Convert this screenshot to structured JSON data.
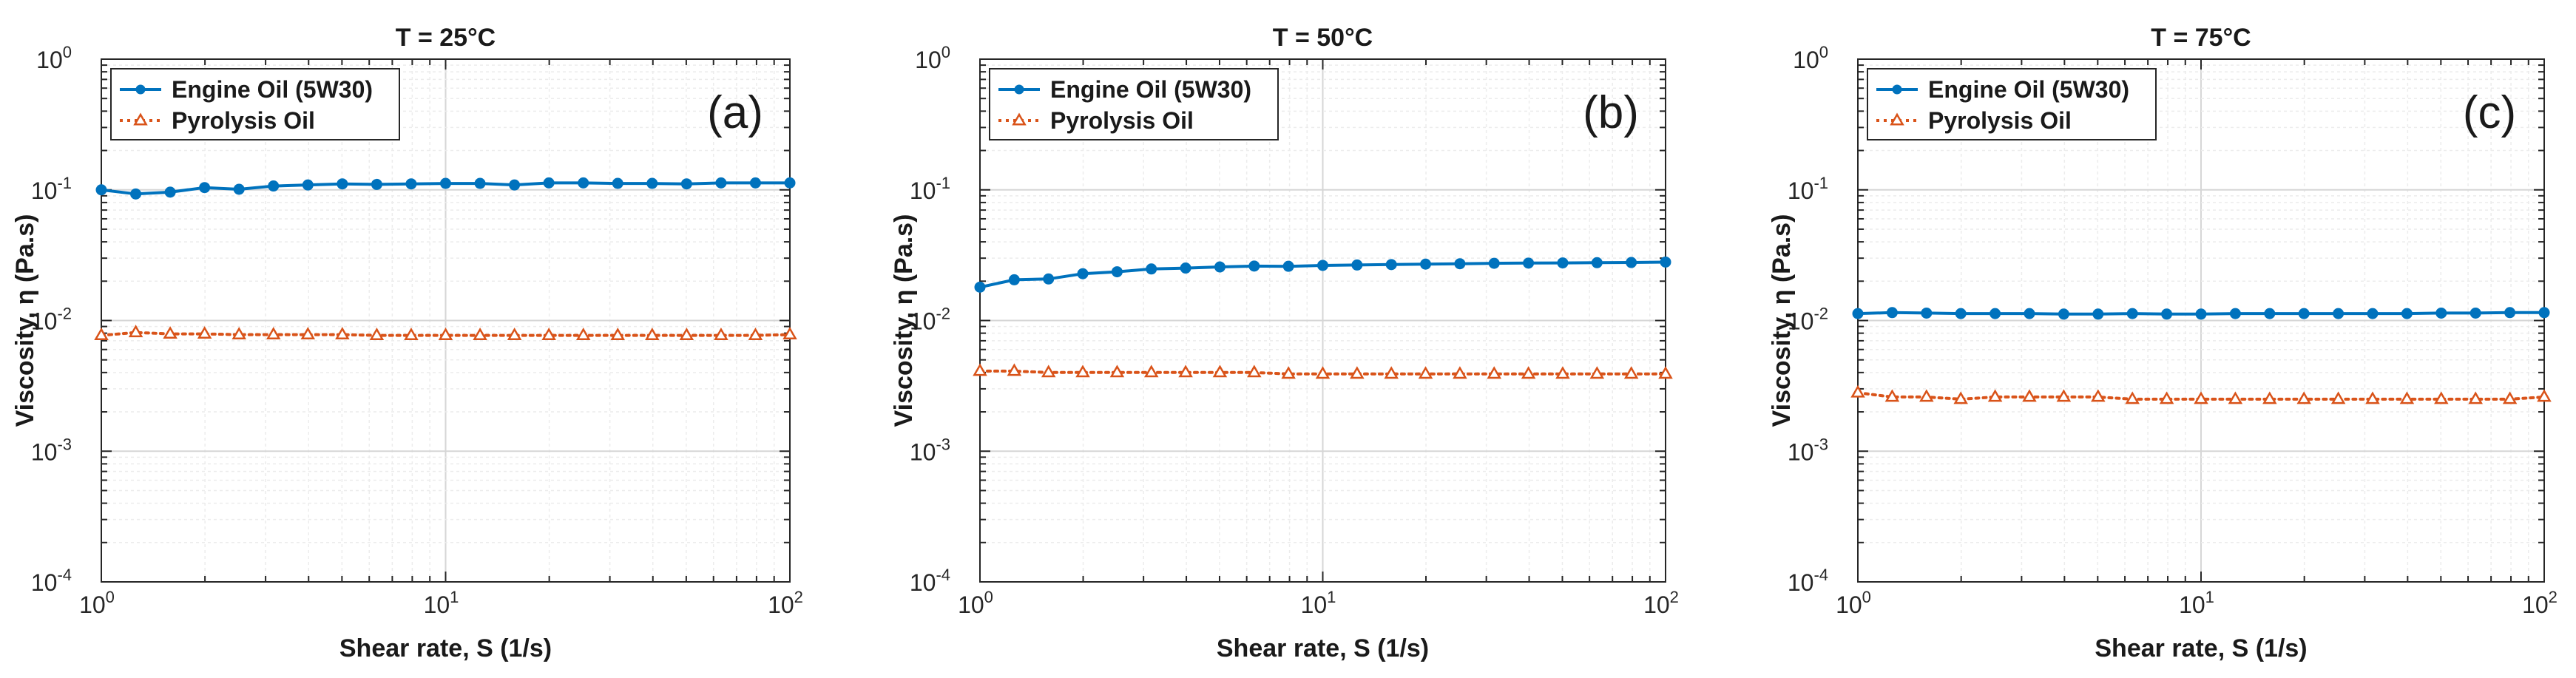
{
  "chart_data": [
    {
      "type": "line",
      "title": "T = 25°C",
      "panel_label": "(a)",
      "xlabel": "Shear rate, S (1/s)",
      "ylabel": "Viscosity, η (Pa.s)",
      "xscale": "log",
      "yscale": "log",
      "xlim": [
        1,
        100
      ],
      "ylim": [
        0.0001,
        1
      ],
      "grid": true,
      "legend_position": "top-left",
      "x_tick_labels": [
        {
          "base": "10",
          "exp": "0"
        },
        {
          "base": "10",
          "exp": "1"
        },
        {
          "base": "10",
          "exp": "2"
        }
      ],
      "y_tick_labels": [
        {
          "base": "10",
          "exp": "-4"
        },
        {
          "base": "10",
          "exp": "-3"
        },
        {
          "base": "10",
          "exp": "-2"
        },
        {
          "base": "10",
          "exp": "-1"
        },
        {
          "base": "10",
          "exp": "0"
        }
      ],
      "x": [
        1.0,
        1.259,
        1.585,
        1.995,
        2.512,
        3.162,
        3.981,
        5.012,
        6.31,
        7.943,
        10.0,
        12.59,
        15.85,
        19.95,
        25.12,
        31.62,
        39.81,
        50.12,
        63.1,
        79.43,
        100.0
      ],
      "series": [
        {
          "name": "Engine Oil (5W30)",
          "color": "#0072bd",
          "marker": "circle",
          "style": "solid",
          "values": [
            0.1,
            0.093,
            0.096,
            0.104,
            0.101,
            0.107,
            0.109,
            0.111,
            0.11,
            0.111,
            0.112,
            0.112,
            0.109,
            0.113,
            0.113,
            0.112,
            0.112,
            0.111,
            0.113,
            0.113,
            0.113
          ]
        },
        {
          "name": "Pyrolysis Oil",
          "color": "#d95319",
          "marker": "triangle",
          "style": "dotted",
          "values": [
            0.0077,
            0.0081,
            0.0079,
            0.0079,
            0.0078,
            0.0078,
            0.0078,
            0.0078,
            0.0077,
            0.0077,
            0.0077,
            0.0077,
            0.0077,
            0.0077,
            0.0077,
            0.0077,
            0.0077,
            0.0077,
            0.0077,
            0.0077,
            0.0078
          ]
        }
      ]
    },
    {
      "type": "line",
      "title": "T = 50°C",
      "panel_label": "(b)",
      "xlabel": "Shear rate, S (1/s)",
      "ylabel": "Viscosity, η (Pa.s)",
      "xscale": "log",
      "yscale": "log",
      "xlim": [
        1,
        100
      ],
      "ylim": [
        0.0001,
        1
      ],
      "grid": true,
      "legend_position": "top-left",
      "x_tick_labels": [
        {
          "base": "10",
          "exp": "0"
        },
        {
          "base": "10",
          "exp": "1"
        },
        {
          "base": "10",
          "exp": "2"
        }
      ],
      "y_tick_labels": [
        {
          "base": "10",
          "exp": "-4"
        },
        {
          "base": "10",
          "exp": "-3"
        },
        {
          "base": "10",
          "exp": "-2"
        },
        {
          "base": "10",
          "exp": "-1"
        },
        {
          "base": "10",
          "exp": "0"
        }
      ],
      "x": [
        1.0,
        1.259,
        1.585,
        1.995,
        2.512,
        3.162,
        3.981,
        5.012,
        6.31,
        7.943,
        10.0,
        12.59,
        15.85,
        19.95,
        25.12,
        31.62,
        39.81,
        50.12,
        63.1,
        79.43,
        100.0
      ],
      "series": [
        {
          "name": "Engine Oil (5W30)",
          "color": "#0072bd",
          "marker": "circle",
          "style": "solid",
          "values": [
            0.018,
            0.0205,
            0.0208,
            0.0228,
            0.0236,
            0.0248,
            0.0252,
            0.0257,
            0.0261,
            0.026,
            0.0264,
            0.0266,
            0.0268,
            0.027,
            0.0272,
            0.0274,
            0.0275,
            0.0276,
            0.0277,
            0.0278,
            0.028
          ]
        },
        {
          "name": "Pyrolysis Oil",
          "color": "#d95319",
          "marker": "triangle",
          "style": "dotted",
          "values": [
            0.0041,
            0.0041,
            0.004,
            0.004,
            0.004,
            0.004,
            0.004,
            0.004,
            0.004,
            0.0039,
            0.0039,
            0.0039,
            0.0039,
            0.0039,
            0.0039,
            0.0039,
            0.0039,
            0.0039,
            0.0039,
            0.0039,
            0.0039
          ]
        }
      ]
    },
    {
      "type": "line",
      "title": "T = 75°C",
      "panel_label": "(c)",
      "xlabel": "Shear rate, S (1/s)",
      "ylabel": "Viscosity, η (Pa.s)",
      "xscale": "log",
      "yscale": "log",
      "xlim": [
        1,
        100
      ],
      "ylim": [
        0.0001,
        1
      ],
      "grid": true,
      "legend_position": "top-left",
      "x_tick_labels": [
        {
          "base": "10",
          "exp": "0"
        },
        {
          "base": "10",
          "exp": "1"
        },
        {
          "base": "10",
          "exp": "2"
        }
      ],
      "y_tick_labels": [
        {
          "base": "10",
          "exp": "-4"
        },
        {
          "base": "10",
          "exp": "-3"
        },
        {
          "base": "10",
          "exp": "-2"
        },
        {
          "base": "10",
          "exp": "-1"
        },
        {
          "base": "10",
          "exp": "0"
        }
      ],
      "x": [
        1.0,
        1.259,
        1.585,
        1.995,
        2.512,
        3.162,
        3.981,
        5.012,
        6.31,
        7.943,
        10.0,
        12.59,
        15.85,
        19.95,
        25.12,
        31.62,
        39.81,
        50.12,
        63.1,
        79.43,
        100.0
      ],
      "series": [
        {
          "name": "Engine Oil (5W30)",
          "color": "#0072bd",
          "marker": "circle",
          "style": "solid",
          "values": [
            0.0113,
            0.0115,
            0.0114,
            0.0113,
            0.0113,
            0.0113,
            0.0112,
            0.0112,
            0.0113,
            0.0112,
            0.0112,
            0.0113,
            0.0113,
            0.0113,
            0.0113,
            0.0113,
            0.0113,
            0.0114,
            0.0114,
            0.0115,
            0.0115
          ]
        },
        {
          "name": "Pyrolysis Oil",
          "color": "#d95319",
          "marker": "triangle",
          "style": "dotted",
          "values": [
            0.0028,
            0.0026,
            0.0026,
            0.0025,
            0.0026,
            0.0026,
            0.0026,
            0.0026,
            0.0025,
            0.0025,
            0.0025,
            0.0025,
            0.0025,
            0.0025,
            0.0025,
            0.0025,
            0.0025,
            0.0025,
            0.0025,
            0.0025,
            0.0026
          ]
        }
      ]
    }
  ]
}
